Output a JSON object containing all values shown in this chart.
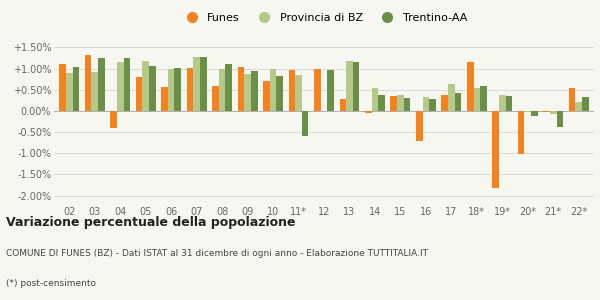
{
  "years": [
    "02",
    "03",
    "04",
    "05",
    "06",
    "07",
    "08",
    "09",
    "10",
    "11*",
    "12",
    "13",
    "14",
    "15",
    "16",
    "17",
    "18*",
    "19*",
    "20*",
    "21*",
    "22*"
  ],
  "funes": [
    1.12,
    1.32,
    -0.4,
    0.79,
    0.57,
    1.01,
    0.6,
    1.03,
    0.7,
    0.96,
    0.98,
    0.29,
    -0.06,
    0.35,
    -0.7,
    0.38,
    1.15,
    -1.82,
    -1.02,
    -0.02,
    0.54
  ],
  "provincia_bz": [
    0.9,
    0.92,
    1.15,
    1.17,
    1.0,
    1.27,
    0.99,
    0.88,
    0.98,
    0.84,
    0.0,
    1.18,
    0.53,
    0.37,
    0.33,
    0.64,
    0.55,
    0.38,
    -0.02,
    -0.07,
    0.2
  ],
  "trentino_aa": [
    1.04,
    1.26,
    1.24,
    1.06,
    1.01,
    1.28,
    1.1,
    0.95,
    0.83,
    -0.6,
    0.97,
    1.16,
    0.37,
    0.3,
    0.29,
    0.43,
    0.58,
    0.35,
    -0.12,
    -0.38,
    0.32
  ],
  "color_funes": "#f5821f",
  "color_provincia": "#b5c98a",
  "color_trentino": "#6b8f47",
  "title": "Variazione percentuale della popolazione",
  "subtitle": "COMUNE DI FUNES (BZ) - Dati ISTAT al 31 dicembre di ogni anno - Elaborazione TUTTITALIA.IT",
  "footnote": "(*) post-censimento",
  "background_color": "#f7f7f2",
  "ylim": [
    -2.2,
    1.7
  ],
  "yticks": [
    -2.0,
    -1.5,
    -1.0,
    -0.5,
    0.0,
    0.5,
    1.0,
    1.5
  ]
}
